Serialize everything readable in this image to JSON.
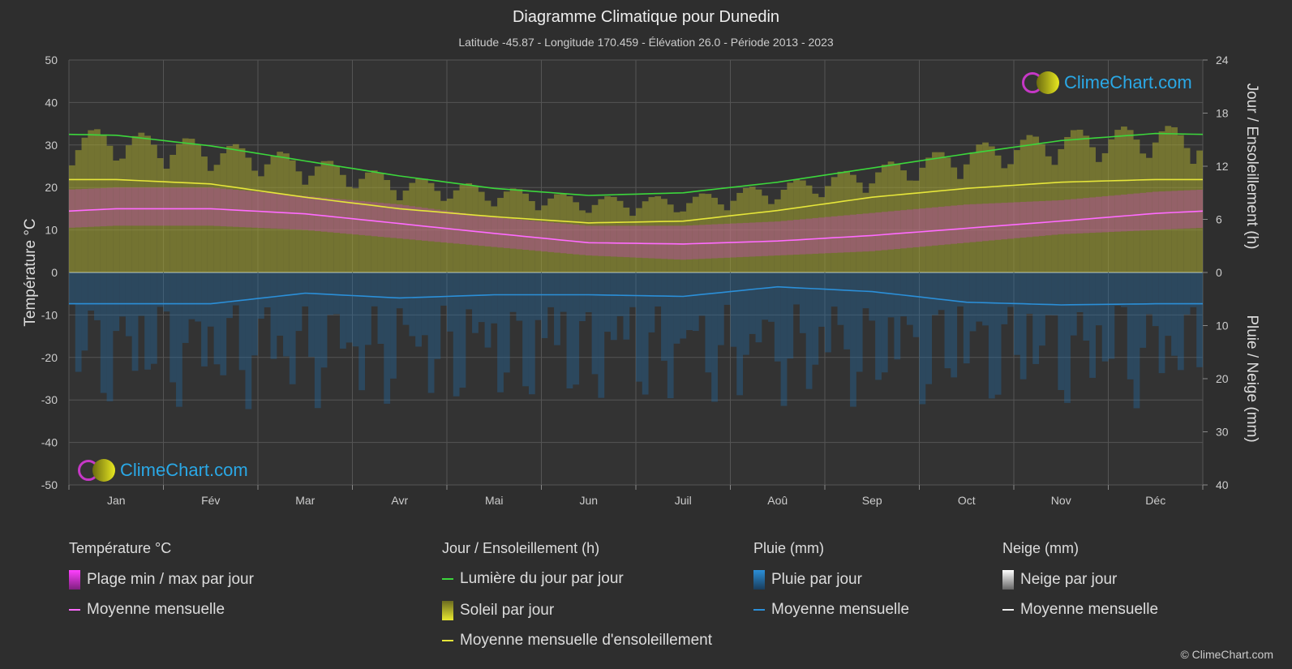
{
  "title": "Diagramme Climatique pour Dunedin",
  "subtitle": "Latitude -45.87 - Longitude 170.459 - Élévation 26.0 - Période 2013 - 2023",
  "logo_text": "ClimeChart.com",
  "copyright": "© ClimeChart.com",
  "legend": {
    "temp_head": "Température °C",
    "temp_range": "Plage min / max par jour",
    "temp_mean": "Moyenne mensuelle",
    "sun_head": "Jour / Ensoleillement (h)",
    "daylight": "Lumière du jour par jour",
    "sun_day": "Soleil par jour",
    "sun_mean": "Moyenne mensuelle d'ensoleillement",
    "rain_head": "Pluie (mm)",
    "rain_day": "Pluie par jour",
    "rain_mean": "Moyenne mensuelle",
    "snow_head": "Neige (mm)",
    "snow_day": "Neige par jour",
    "snow_mean": "Moyenne mensuelle"
  },
  "colors": {
    "background": "#2e2e2e",
    "daylight": "#3cd63c",
    "sunshine_mean": "#e6e63a",
    "temp_mean": "#ff6bff",
    "rain_mean": "#2b8fd8",
    "temp_range": "#d040d0",
    "sun_bar": "#a8a830",
    "rain_bar": "#2070b0"
  },
  "chart_data": {
    "type": "line",
    "categories": [
      "Jan",
      "Fév",
      "Mar",
      "Avr",
      "Mai",
      "Jun",
      "Juil",
      "Aoû",
      "Sep",
      "Oct",
      "Nov",
      "Déc"
    ],
    "y_left": {
      "label": "Température °C",
      "range": [
        -50,
        50
      ],
      "ticks": [
        50,
        40,
        30,
        20,
        10,
        0,
        -10,
        -20,
        -30,
        -40,
        -50
      ]
    },
    "y_right_top": {
      "label": "Jour / Ensoleillement (h)",
      "range": [
        0,
        24
      ],
      "ticks": [
        24,
        18,
        12,
        6,
        0
      ]
    },
    "y_right_bottom": {
      "label": "Pluie / Neige (mm)",
      "range": [
        0,
        40
      ],
      "ticks": [
        0,
        10,
        20,
        30,
        40
      ]
    },
    "series": [
      {
        "name": "Lumière du jour par jour",
        "unit": "h",
        "values": [
          15.5,
          14.3,
          12.6,
          10.9,
          9.5,
          8.7,
          9.0,
          10.2,
          11.8,
          13.4,
          14.9,
          15.7
        ]
      },
      {
        "name": "Moyenne mensuelle d'ensoleillement",
        "unit": "h",
        "values": [
          10.5,
          10.0,
          8.5,
          7.2,
          6.3,
          5.6,
          5.8,
          7.0,
          8.5,
          9.5,
          10.2,
          10.5
        ]
      },
      {
        "name": "Moyenne mensuelle (température)",
        "unit": "°C",
        "values": [
          15.0,
          15.0,
          13.8,
          11.5,
          9.2,
          7.0,
          6.7,
          7.4,
          8.7,
          10.4,
          12.1,
          13.9
        ]
      },
      {
        "name": "Moyenne mensuelle (pluie)",
        "unit": "mm",
        "values": [
          5.9,
          5.9,
          3.9,
          4.8,
          4.2,
          4.2,
          4.5,
          2.7,
          3.6,
          5.6,
          6.1,
          5.9
        ]
      },
      {
        "name": "Plage min / max par jour",
        "unit": "°C",
        "min": [
          11,
          11,
          10,
          8,
          6,
          4,
          3,
          4,
          5,
          7,
          9,
          10
        ],
        "max": [
          20,
          20,
          18,
          16,
          13,
          11,
          11,
          12,
          14,
          16,
          17,
          19
        ]
      },
      {
        "name": "Soleil par jour",
        "unit": "h",
        "values": [
          14.0,
          13.0,
          11.5,
          9.5,
          8.5,
          7.5,
          7.5,
          8.8,
          10.5,
          12.5,
          14.0,
          14.5
        ]
      }
    ]
  }
}
